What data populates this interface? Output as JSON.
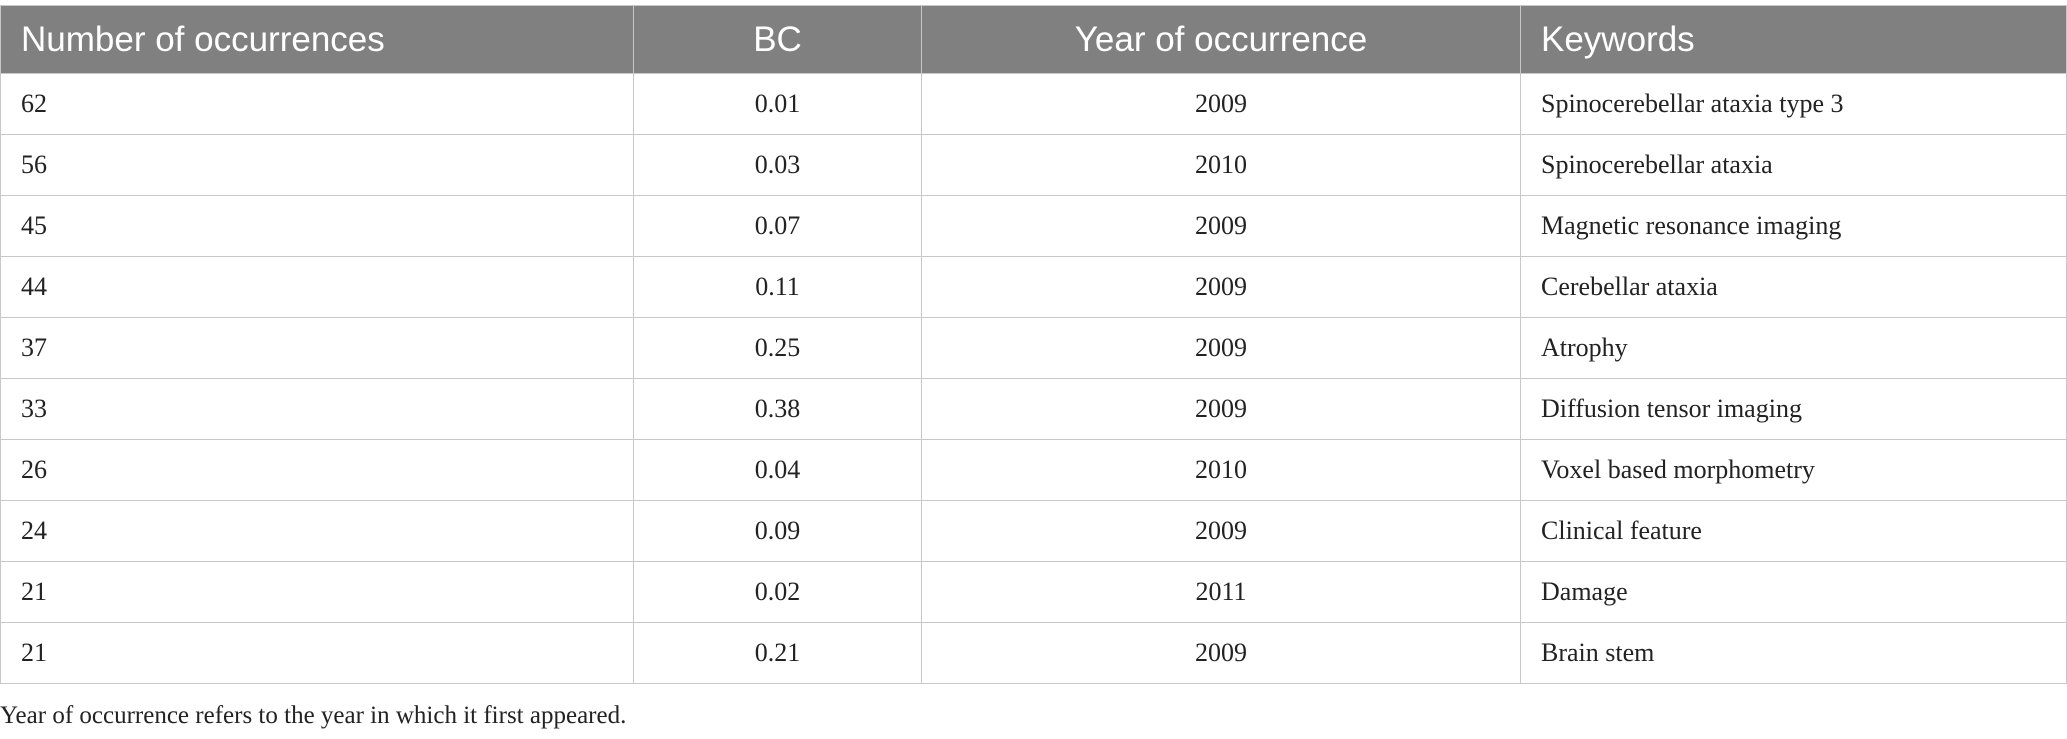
{
  "table": {
    "header": [
      "Number of occurrences",
      "BC",
      "Year of occurrence",
      "Keywords"
    ],
    "rows": [
      [
        "62",
        "0.01",
        "2009",
        "Spinocerebellar ataxia type 3"
      ],
      [
        "56",
        "0.03",
        "2010",
        "Spinocerebellar ataxia"
      ],
      [
        "45",
        "0.07",
        "2009",
        "Magnetic resonance imaging"
      ],
      [
        "44",
        "0.11",
        "2009",
        "Cerebellar ataxia"
      ],
      [
        "37",
        "0.25",
        "2009",
        "Atrophy"
      ],
      [
        "33",
        "0.38",
        "2009",
        "Diffusion tensor imaging"
      ],
      [
        "26",
        "0.04",
        "2010",
        "Voxel based morphometry"
      ],
      [
        "24",
        "0.09",
        "2009",
        "Clinical feature"
      ],
      [
        "21",
        "0.02",
        "2011",
        "Damage"
      ],
      [
        "21",
        "0.21",
        "2009",
        "Brain stem"
      ]
    ]
  },
  "footnote": "Year of occurrence refers to the year in which it first appeared."
}
